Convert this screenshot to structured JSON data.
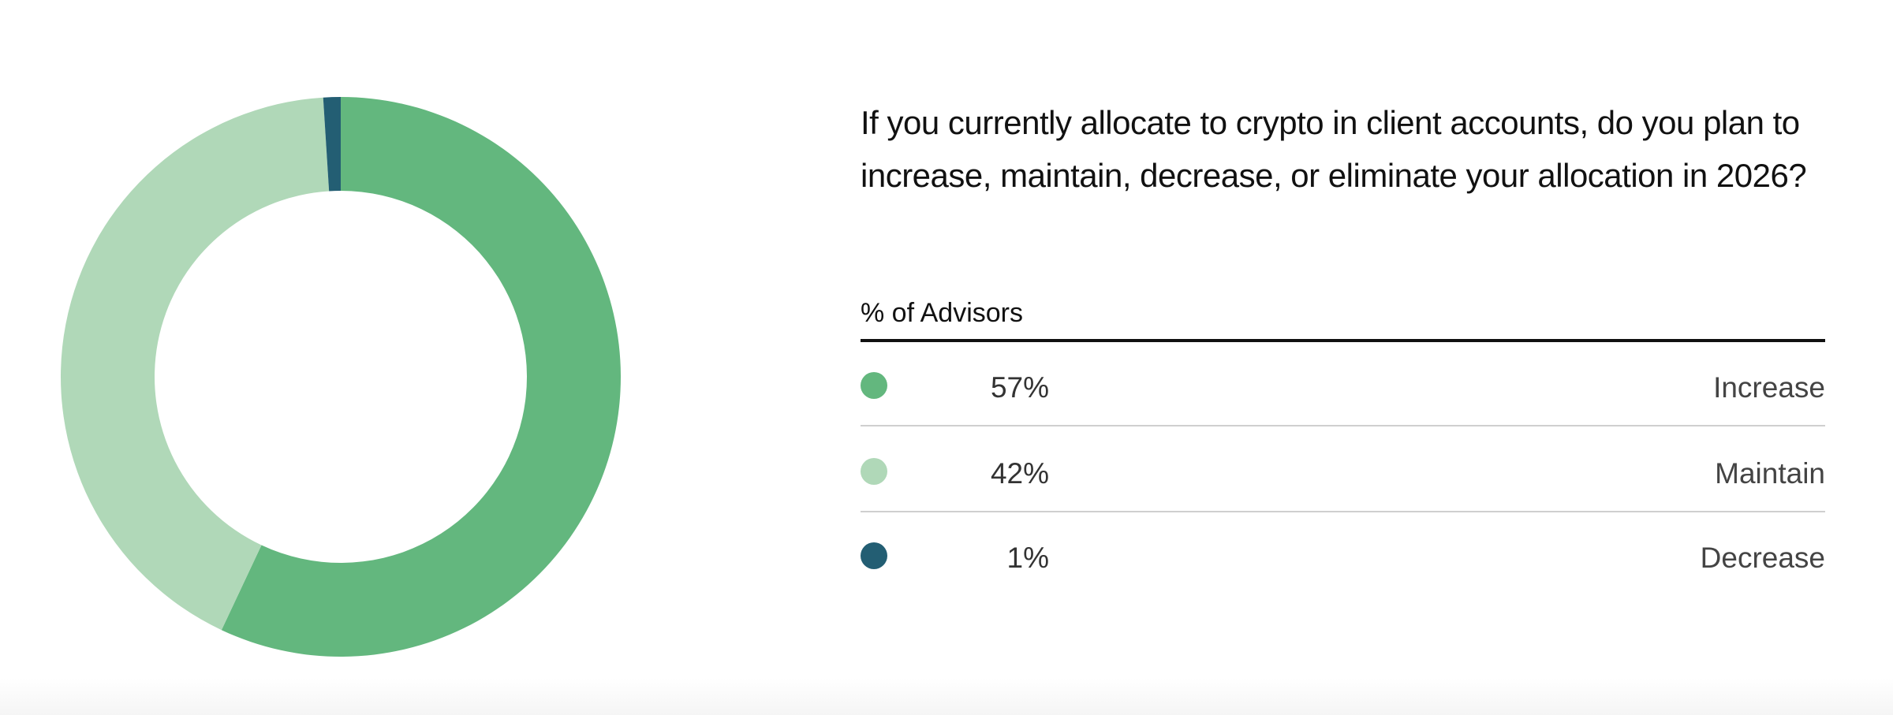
{
  "chart_data": {
    "type": "donut",
    "title": "If you currently allocate to crypto in client accounts, do you plan to increase, maintain, decrease, or eliminate your allocation in 2026?",
    "column_header": "% of Advisors",
    "categories": [
      "Increase",
      "Maintain",
      "Decrease"
    ],
    "values": [
      57,
      42,
      1
    ],
    "value_labels": [
      "57%",
      "42%",
      "1%"
    ],
    "colors": [
      "#63b77e",
      "#b0d8b8",
      "#235e73"
    ]
  }
}
